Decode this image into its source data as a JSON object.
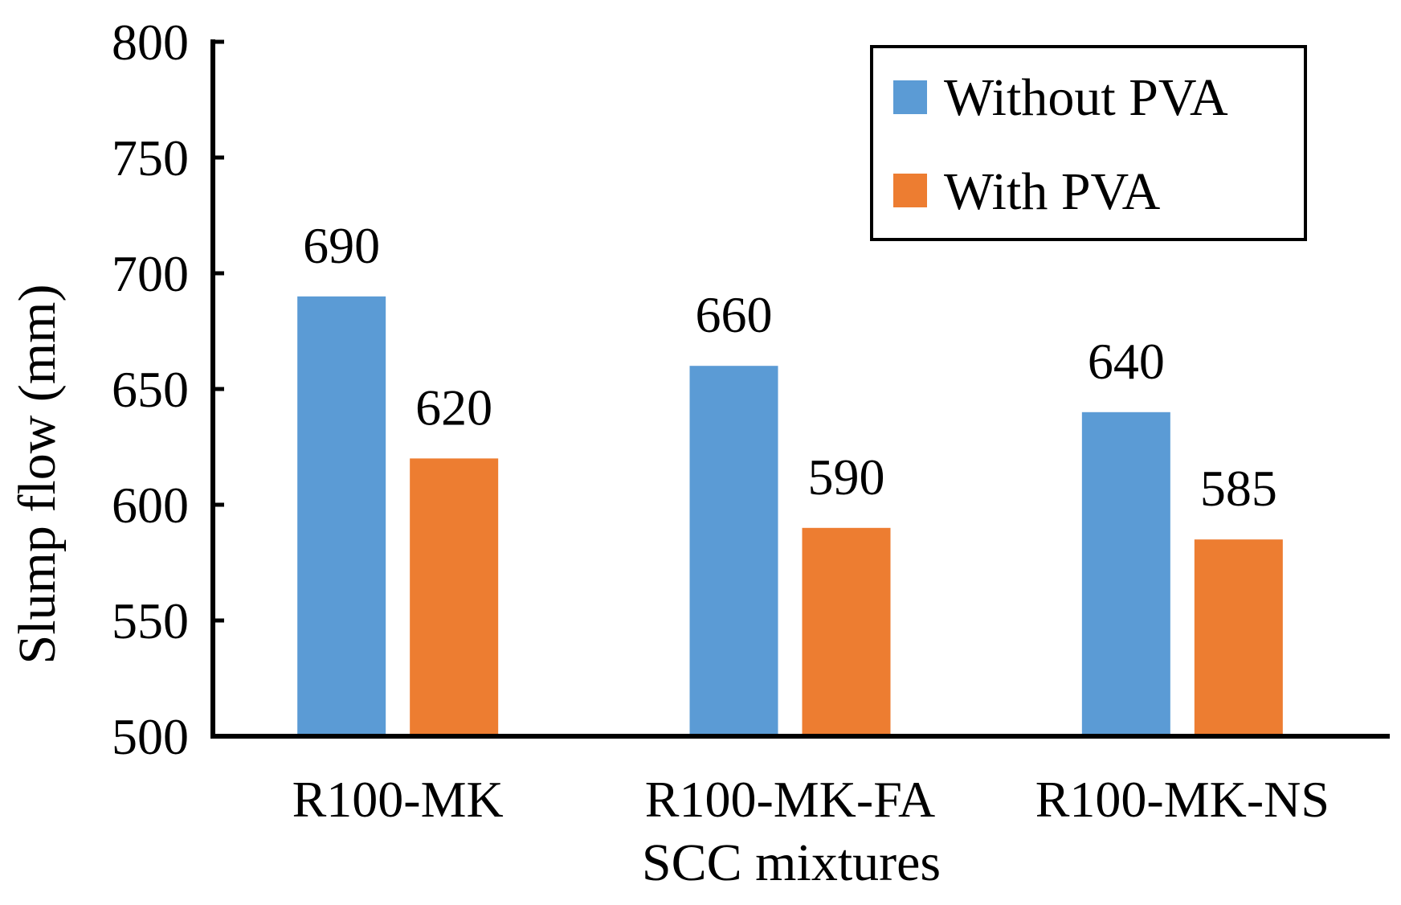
{
  "chart_data": {
    "type": "bar",
    "title": "",
    "xlabel": "SCC mixtures",
    "ylabel": "Slump flow (mm)",
    "ylim": [
      500,
      800
    ],
    "yticks": [
      500,
      550,
      600,
      650,
      700,
      750,
      800
    ],
    "grid": false,
    "legend_position": "top-right",
    "categories": [
      "R100-MK",
      "R100-MK-FA",
      "R100-MK-NS"
    ],
    "series": [
      {
        "name": "Without PVA",
        "color": "#5b9bd5",
        "values": [
          690,
          660,
          640
        ],
        "labels": [
          "690",
          "660",
          "640"
        ]
      },
      {
        "name": "With PVA",
        "color": "#ed7d31",
        "values": [
          620,
          590,
          585
        ],
        "labels": [
          "620",
          "590",
          "585"
        ]
      }
    ]
  }
}
